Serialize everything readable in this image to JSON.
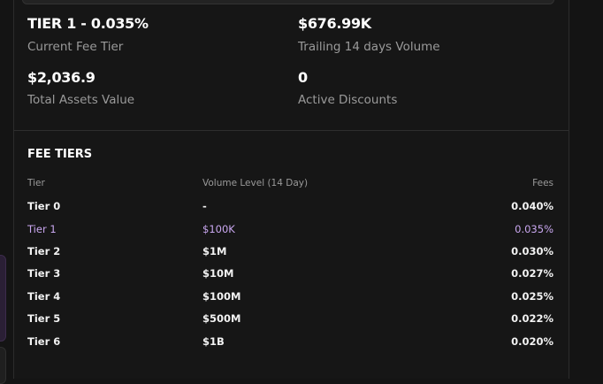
{
  "stats": [
    {
      "value": "TIER 1 - 0.035%",
      "label": "Current Fee Tier"
    },
    {
      "value": "$676.99K",
      "label": "Trailing 14 days Volume"
    },
    {
      "value": "$2,036.9",
      "label": "Total Assets Value"
    },
    {
      "value": "0",
      "label": "Active Discounts"
    }
  ],
  "fee_tiers": {
    "title": "FEE TIERS",
    "headers": [
      "Tier",
      "Volume Level (14 Day)",
      "Fees"
    ],
    "rows": [
      [
        "Tier 0",
        "-",
        "0.040%"
      ],
      [
        "Tier 1",
        "$100K",
        "0.035%"
      ],
      [
        "Tier 2",
        "$1M",
        "0.030%"
      ],
      [
        "Tier 3",
        "$10M",
        "0.027%"
      ],
      [
        "Tier 4",
        "$100M",
        "0.025%"
      ],
      [
        "Tier 5",
        "$500M",
        "0.022%"
      ],
      [
        "Tier 6",
        "$1B",
        "0.020%"
      ]
    ]
  }
}
